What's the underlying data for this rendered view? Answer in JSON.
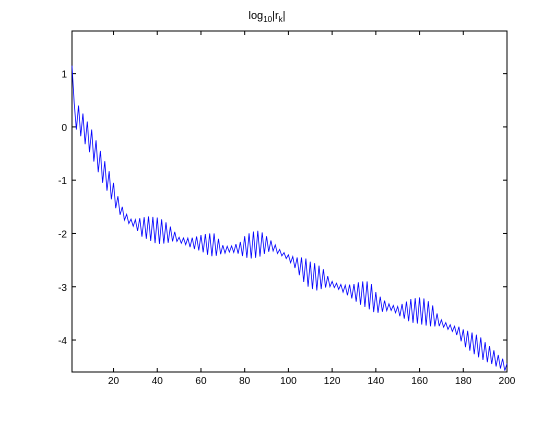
{
  "chart_data": {
    "type": "line",
    "title_base": "log",
    "title_sub": "10",
    "title_mid": "|r",
    "title_sub2": "k",
    "title_end": "|",
    "xlabel": "",
    "ylabel": "",
    "xlim": [
      1,
      200
    ],
    "ylim": [
      -4.6,
      1.8
    ],
    "xticks": [
      20,
      40,
      60,
      80,
      100,
      120,
      140,
      160,
      180,
      200
    ],
    "yticks": [
      1,
      0,
      -1,
      -2,
      -3,
      -4
    ],
    "grid": false,
    "series": [
      {
        "color": "#0000ff",
        "envelope_x": [
          1,
          2,
          3,
          4,
          6,
          8,
          10,
          12,
          15,
          18,
          20,
          22,
          24,
          26,
          28,
          30,
          33,
          36,
          40,
          43,
          46,
          48,
          50,
          53,
          56,
          60,
          63,
          66,
          68,
          70,
          73,
          76,
          78,
          80,
          83,
          86,
          88,
          90,
          93,
          96,
          98,
          100,
          103,
          106,
          108,
          110,
          113,
          116,
          118,
          120,
          123,
          126,
          130,
          133,
          136,
          138,
          140,
          143,
          146,
          148,
          150,
          153,
          156,
          160,
          163,
          166,
          168,
          170,
          173,
          176,
          178,
          180,
          183,
          186,
          188,
          190,
          193,
          196,
          198,
          200
        ],
        "envelope_mid": [
          0.9,
          0.4,
          0.25,
          0.15,
          0.0,
          -0.15,
          -0.3,
          -0.5,
          -0.8,
          -1.05,
          -1.25,
          -1.45,
          -1.6,
          -1.72,
          -1.78,
          -1.82,
          -1.88,
          -1.9,
          -1.95,
          -1.97,
          -2.02,
          -2.05,
          -2.12,
          -2.15,
          -2.18,
          -2.18,
          -2.2,
          -2.22,
          -2.25,
          -2.3,
          -2.3,
          -2.28,
          -2.28,
          -2.25,
          -2.22,
          -2.2,
          -2.2,
          -2.2,
          -2.25,
          -2.35,
          -2.4,
          -2.45,
          -2.55,
          -2.65,
          -2.72,
          -2.78,
          -2.82,
          -2.85,
          -2.9,
          -2.95,
          -3.0,
          -3.05,
          -3.1,
          -3.12,
          -3.15,
          -3.2,
          -3.3,
          -3.35,
          -3.38,
          -3.4,
          -3.45,
          -3.45,
          -3.45,
          -3.45,
          -3.48,
          -3.55,
          -3.62,
          -3.68,
          -3.75,
          -3.8,
          -3.85,
          -3.95,
          -4.02,
          -4.1,
          -4.15,
          -4.22,
          -4.3,
          -4.4,
          -4.45,
          -4.52
        ],
        "envelope_amp": [
          0.3,
          0.3,
          0.3,
          0.25,
          0.25,
          0.25,
          0.25,
          0.25,
          0.25,
          0.22,
          0.2,
          0.15,
          0.1,
          0.08,
          0.05,
          0.08,
          0.18,
          0.22,
          0.25,
          0.22,
          0.15,
          0.08,
          0.05,
          0.06,
          0.1,
          0.15,
          0.2,
          0.22,
          0.15,
          0.08,
          0.05,
          0.08,
          0.12,
          0.2,
          0.25,
          0.25,
          0.22,
          0.15,
          0.08,
          0.05,
          0.04,
          0.05,
          0.1,
          0.2,
          0.25,
          0.25,
          0.25,
          0.18,
          0.1,
          0.05,
          0.05,
          0.08,
          0.15,
          0.22,
          0.25,
          0.25,
          0.2,
          0.12,
          0.06,
          0.05,
          0.08,
          0.15,
          0.22,
          0.25,
          0.25,
          0.2,
          0.12,
          0.06,
          0.05,
          0.06,
          0.1,
          0.15,
          0.18,
          0.2,
          0.2,
          0.18,
          0.15,
          0.12,
          0.1,
          0.08
        ]
      }
    ]
  }
}
